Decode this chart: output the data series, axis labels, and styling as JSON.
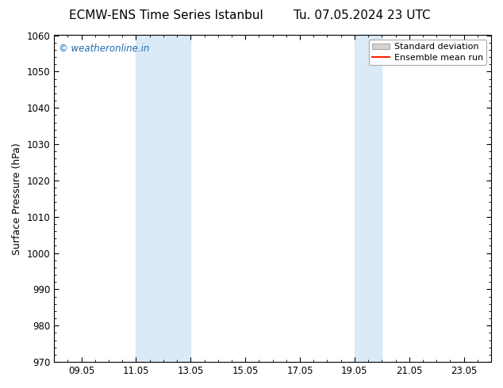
{
  "title_left": "ECMW-ENS Time Series Istanbul",
  "title_right": "Tu. 07.05.2024 23 UTC",
  "ylabel": "Surface Pressure (hPa)",
  "ylim": [
    970,
    1060
  ],
  "yticks": [
    970,
    980,
    990,
    1000,
    1010,
    1020,
    1030,
    1040,
    1050,
    1060
  ],
  "xmin": 8.05,
  "xmax": 24.05,
  "xticks": [
    9.05,
    11.05,
    13.05,
    15.05,
    17.05,
    19.05,
    21.05,
    23.05
  ],
  "xtick_labels": [
    "09.05",
    "11.05",
    "13.05",
    "15.05",
    "17.05",
    "19.05",
    "21.05",
    "23.05"
  ],
  "shaded_bands": [
    {
      "xmin": 11.05,
      "xmax": 13.05
    },
    {
      "xmin": 19.05,
      "xmax": 20.05
    }
  ],
  "shade_color": "#daeaf7",
  "watermark_text": "© weatheronline.in",
  "watermark_color": "#1a6cb0",
  "legend_std_label": "Standard deviation",
  "legend_mean_label": "Ensemble mean run",
  "legend_std_color": "#d3d3d3",
  "legend_mean_color": "#ff2200",
  "bg_color": "#ffffff",
  "plot_bg_color": "#ffffff",
  "title_fontsize": 11,
  "axis_fontsize": 9,
  "tick_fontsize": 8.5,
  "watermark_fontsize": 8.5
}
